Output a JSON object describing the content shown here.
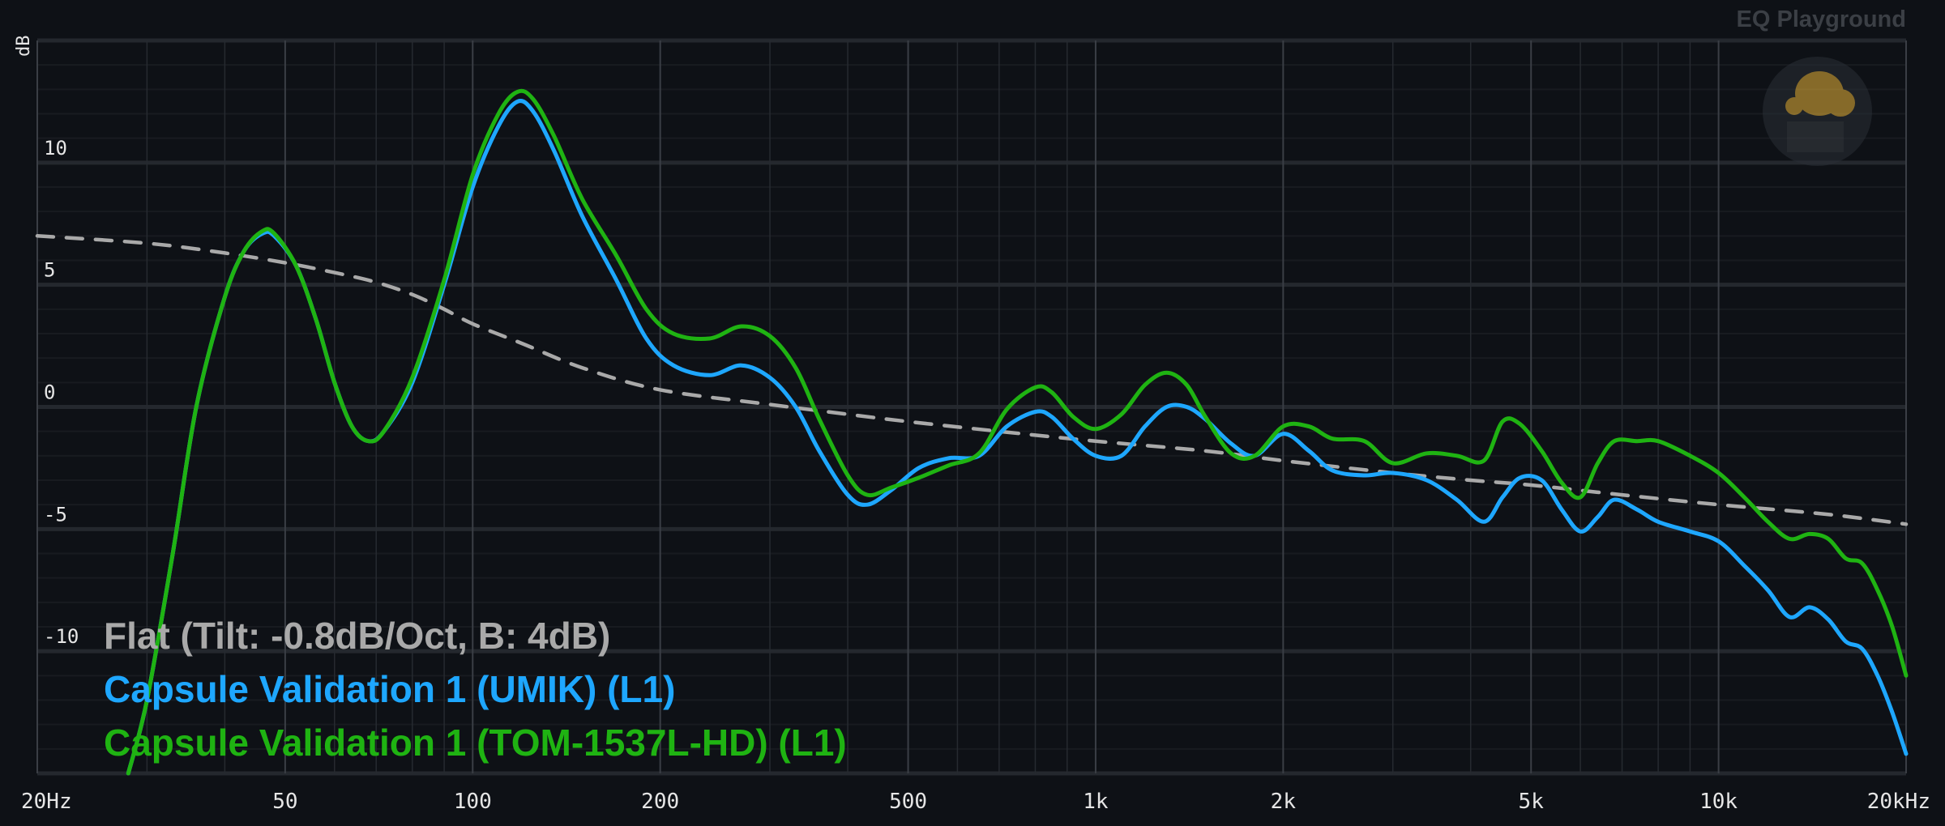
{
  "app": {
    "brand": "EQ Playground"
  },
  "colors": {
    "background": "#0e1116",
    "grid": "#2b2f36",
    "flat": "#a9a9a9",
    "umik": "#1ea7ff",
    "tom": "#1fb312"
  },
  "chart_data": {
    "type": "line",
    "xscale": "log",
    "xlim": [
      20,
      20000
    ],
    "ylim": [
      -15,
      15
    ],
    "ylabel": "dB",
    "y_ticks": [
      {
        "value": 10,
        "label": "10"
      },
      {
        "value": 5,
        "label": "5"
      },
      {
        "value": 0,
        "label": "0"
      },
      {
        "value": -5,
        "label": "-5"
      },
      {
        "value": -10,
        "label": "-10"
      }
    ],
    "x_ticks": [
      {
        "value": 20,
        "label": "20Hz"
      },
      {
        "value": 50,
        "label": "50"
      },
      {
        "value": 100,
        "label": "100"
      },
      {
        "value": 200,
        "label": "200"
      },
      {
        "value": 500,
        "label": "500"
      },
      {
        "value": 1000,
        "label": "1k"
      },
      {
        "value": 2000,
        "label": "2k"
      },
      {
        "value": 5000,
        "label": "5k"
      },
      {
        "value": 10000,
        "label": "10k"
      },
      {
        "value": 20000,
        "label": "20kHz"
      }
    ],
    "series": [
      {
        "name": "Flat (Tilt: -0.8dB/Oct, B: 4dB)",
        "color": "#a9a9a9",
        "dashed": true,
        "points": [
          [
            20,
            7.0
          ],
          [
            30,
            6.7
          ],
          [
            40,
            6.3
          ],
          [
            50,
            5.9
          ],
          [
            60,
            5.5
          ],
          [
            70,
            5.1
          ],
          [
            80,
            4.6
          ],
          [
            90,
            4.0
          ],
          [
            100,
            3.4
          ],
          [
            120,
            2.6
          ],
          [
            150,
            1.6
          ],
          [
            200,
            0.7
          ],
          [
            300,
            0.1
          ],
          [
            400,
            -0.3
          ],
          [
            500,
            -0.6
          ],
          [
            700,
            -1.0
          ],
          [
            1000,
            -1.4
          ],
          [
            1500,
            -1.8
          ],
          [
            2000,
            -2.2
          ],
          [
            3000,
            -2.7
          ],
          [
            4000,
            -3.0
          ],
          [
            5000,
            -3.2
          ],
          [
            7000,
            -3.6
          ],
          [
            10000,
            -4.0
          ],
          [
            15000,
            -4.4
          ],
          [
            20000,
            -4.8
          ]
        ]
      },
      {
        "name": "Capsule Validation 1 (UMIK) (L1)",
        "color": "#1ea7ff",
        "points": [
          [
            28,
            -15
          ],
          [
            30,
            -12
          ],
          [
            33,
            -6
          ],
          [
            36,
            0
          ],
          [
            40,
            4.5
          ],
          [
            43,
            6.4
          ],
          [
            46,
            7.1
          ],
          [
            48,
            7.0
          ],
          [
            52,
            5.8
          ],
          [
            56,
            3.6
          ],
          [
            60,
            1.0
          ],
          [
            64,
            -0.8
          ],
          [
            68,
            -1.4
          ],
          [
            72,
            -1.0
          ],
          [
            80,
            1.0
          ],
          [
            90,
            5.0
          ],
          [
            100,
            9.0
          ],
          [
            110,
            11.5
          ],
          [
            118,
            12.5
          ],
          [
            125,
            12.1
          ],
          [
            135,
            10.5
          ],
          [
            150,
            7.8
          ],
          [
            170,
            5.2
          ],
          [
            190,
            2.8
          ],
          [
            210,
            1.7
          ],
          [
            240,
            1.3
          ],
          [
            270,
            1.7
          ],
          [
            300,
            1.2
          ],
          [
            330,
            0.0
          ],
          [
            360,
            -1.8
          ],
          [
            400,
            -3.6
          ],
          [
            430,
            -4.0
          ],
          [
            470,
            -3.4
          ],
          [
            520,
            -2.5
          ],
          [
            580,
            -2.1
          ],
          [
            650,
            -2.0
          ],
          [
            720,
            -0.8
          ],
          [
            800,
            -0.2
          ],
          [
            850,
            -0.4
          ],
          [
            920,
            -1.3
          ],
          [
            1000,
            -2.0
          ],
          [
            1100,
            -2.0
          ],
          [
            1200,
            -0.8
          ],
          [
            1300,
            0.0
          ],
          [
            1400,
            0.0
          ],
          [
            1500,
            -0.5
          ],
          [
            1650,
            -1.5
          ],
          [
            1800,
            -2.0
          ],
          [
            2000,
            -1.1
          ],
          [
            2200,
            -1.8
          ],
          [
            2400,
            -2.6
          ],
          [
            2700,
            -2.8
          ],
          [
            3000,
            -2.7
          ],
          [
            3400,
            -3.0
          ],
          [
            3800,
            -3.8
          ],
          [
            4200,
            -4.7
          ],
          [
            4500,
            -3.7
          ],
          [
            4800,
            -2.9
          ],
          [
            5200,
            -3.0
          ],
          [
            5600,
            -4.2
          ],
          [
            6000,
            -5.1
          ],
          [
            6400,
            -4.5
          ],
          [
            6800,
            -3.8
          ],
          [
            7400,
            -4.2
          ],
          [
            8000,
            -4.7
          ],
          [
            9000,
            -5.1
          ],
          [
            10000,
            -5.5
          ],
          [
            11000,
            -6.5
          ],
          [
            12000,
            -7.5
          ],
          [
            13000,
            -8.6
          ],
          [
            14000,
            -8.2
          ],
          [
            15000,
            -8.7
          ],
          [
            16000,
            -9.6
          ],
          [
            17000,
            -9.9
          ],
          [
            18000,
            -11.0
          ],
          [
            19000,
            -12.5
          ],
          [
            20000,
            -14.2
          ]
        ]
      },
      {
        "name": "Capsule Validation 1 (TOM-1537L-HD) (L1)",
        "color": "#1fb312",
        "points": [
          [
            28,
            -15
          ],
          [
            30,
            -12
          ],
          [
            33,
            -6
          ],
          [
            36,
            0
          ],
          [
            40,
            4.5
          ],
          [
            43,
            6.4
          ],
          [
            46,
            7.2
          ],
          [
            48,
            7.1
          ],
          [
            52,
            5.8
          ],
          [
            56,
            3.6
          ],
          [
            60,
            1.0
          ],
          [
            64,
            -0.8
          ],
          [
            68,
            -1.4
          ],
          [
            72,
            -1.0
          ],
          [
            80,
            1.2
          ],
          [
            90,
            5.2
          ],
          [
            100,
            9.5
          ],
          [
            110,
            12.0
          ],
          [
            118,
            12.9
          ],
          [
            125,
            12.6
          ],
          [
            135,
            11.1
          ],
          [
            150,
            8.5
          ],
          [
            170,
            6.2
          ],
          [
            190,
            4.0
          ],
          [
            210,
            3.0
          ],
          [
            240,
            2.8
          ],
          [
            270,
            3.3
          ],
          [
            300,
            2.9
          ],
          [
            330,
            1.6
          ],
          [
            360,
            -0.5
          ],
          [
            400,
            -2.8
          ],
          [
            430,
            -3.6
          ],
          [
            470,
            -3.3
          ],
          [
            520,
            -2.9
          ],
          [
            580,
            -2.4
          ],
          [
            650,
            -1.9
          ],
          [
            720,
            -0.1
          ],
          [
            800,
            0.8
          ],
          [
            850,
            0.6
          ],
          [
            920,
            -0.4
          ],
          [
            1000,
            -0.9
          ],
          [
            1100,
            -0.3
          ],
          [
            1200,
            0.9
          ],
          [
            1300,
            1.4
          ],
          [
            1400,
            0.9
          ],
          [
            1500,
            -0.4
          ],
          [
            1650,
            -1.9
          ],
          [
            1800,
            -2.0
          ],
          [
            2000,
            -0.8
          ],
          [
            2200,
            -0.8
          ],
          [
            2400,
            -1.3
          ],
          [
            2700,
            -1.4
          ],
          [
            3000,
            -2.3
          ],
          [
            3400,
            -1.9
          ],
          [
            3800,
            -2.0
          ],
          [
            4200,
            -2.2
          ],
          [
            4500,
            -0.6
          ],
          [
            4800,
            -0.7
          ],
          [
            5200,
            -1.8
          ],
          [
            5600,
            -3.1
          ],
          [
            6000,
            -3.7
          ],
          [
            6400,
            -2.3
          ],
          [
            6800,
            -1.4
          ],
          [
            7400,
            -1.4
          ],
          [
            8000,
            -1.4
          ],
          [
            9000,
            -2.0
          ],
          [
            10000,
            -2.7
          ],
          [
            11000,
            -3.7
          ],
          [
            12000,
            -4.7
          ],
          [
            13000,
            -5.4
          ],
          [
            14000,
            -5.2
          ],
          [
            15000,
            -5.4
          ],
          [
            16000,
            -6.2
          ],
          [
            17000,
            -6.4
          ],
          [
            18000,
            -7.5
          ],
          [
            19000,
            -9.0
          ],
          [
            20000,
            -11.0
          ]
        ]
      }
    ]
  }
}
